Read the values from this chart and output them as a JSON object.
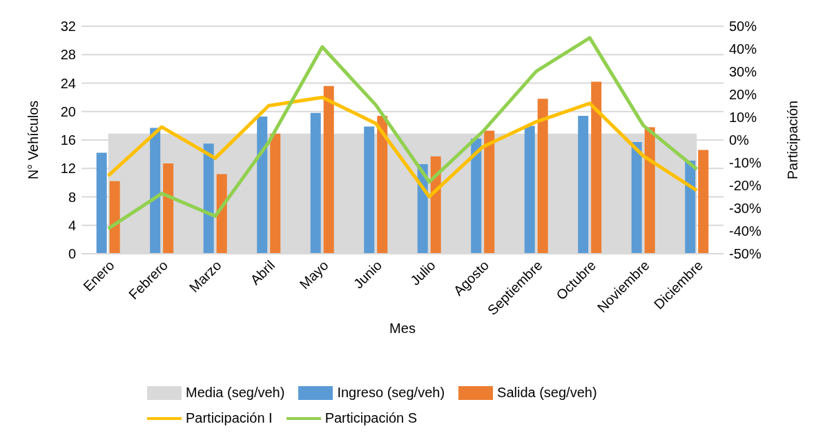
{
  "chart_data": {
    "type": "bar",
    "xlabel": "Mes",
    "ylabel": "N° Vehículos",
    "y2label": "Participación",
    "categories": [
      "Enero",
      "Febrero",
      "Marzo",
      "Abril",
      "Mayo",
      "Junio",
      "Julio",
      "Agosto",
      "Septiembre",
      "Octubre",
      "Noviembre",
      "Diciembre"
    ],
    "series": [
      {
        "name": "Media (seg/veh)",
        "type": "area",
        "color": "#d9d9d9",
        "values": [
          16.9,
          16.9,
          16.9,
          16.9,
          16.9,
          16.9,
          16.9,
          16.9,
          16.9,
          16.9,
          16.9,
          16.9
        ]
      },
      {
        "name": "Ingreso (seg/veh)",
        "color": "#5b9bd5",
        "values": [
          14.2,
          17.7,
          15.5,
          19.3,
          19.8,
          17.9,
          12.6,
          16.2,
          18.0,
          19.4,
          15.7,
          13.1
        ]
      },
      {
        "name": "Salida (seg/veh)",
        "color": "#ed7d31",
        "values": [
          10.2,
          12.7,
          11.2,
          16.9,
          23.6,
          19.4,
          13.7,
          17.3,
          21.8,
          24.2,
          17.8,
          14.6
        ]
      },
      {
        "name": "Participación I",
        "type": "line",
        "axis": "y2",
        "color": "#ffc000",
        "values": [
          -15.7,
          5.7,
          -8,
          15.1,
          18.7,
          7.3,
          -24.9,
          -3,
          8,
          16.1,
          -7,
          -22.2
        ]
      },
      {
        "name": "Participación S",
        "type": "line",
        "axis": "y2",
        "color": "#92d050",
        "values": [
          -39,
          -23.5,
          -33.5,
          -1,
          40.9,
          15.4,
          -18.4,
          3.7,
          30.2,
          44.9,
          6.4,
          -12.8
        ]
      }
    ],
    "ylim": [
      0,
      32
    ],
    "yticks": [
      0,
      4,
      8,
      12,
      16,
      20,
      24,
      28,
      32
    ],
    "y2lim": [
      -50,
      50
    ],
    "y2ticks": [
      {
        "value": -50,
        "label": "-50%"
      },
      {
        "value": -40,
        "label": "-40%"
      },
      {
        "value": -30,
        "label": "-30%"
      },
      {
        "value": -20,
        "label": "-20%"
      },
      {
        "value": -10,
        "label": "-10%"
      },
      {
        "value": 0,
        "label": "0%"
      },
      {
        "value": 10,
        "label": "10%"
      },
      {
        "value": 20,
        "label": "20%"
      },
      {
        "value": 30,
        "label": "30%"
      },
      {
        "value": 40,
        "label": "40%"
      },
      {
        "value": 50,
        "label": "50%"
      }
    ],
    "grid": "y",
    "legend": "bottom",
    "marker": "none",
    "line_style": "solid"
  }
}
